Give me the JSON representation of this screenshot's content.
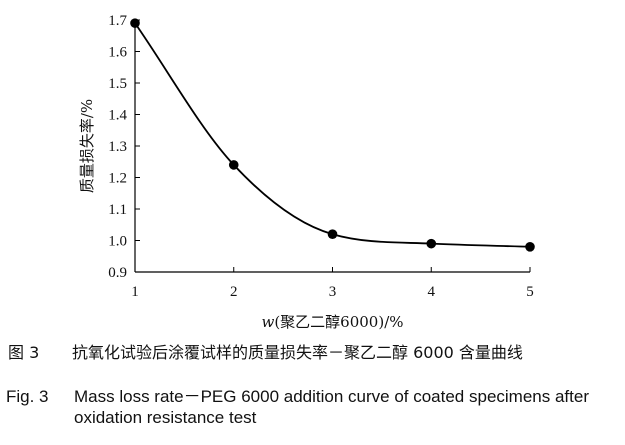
{
  "chart_data": {
    "type": "line",
    "x": [
      1,
      2,
      3,
      4,
      5
    ],
    "values": [
      1.69,
      1.24,
      1.02,
      0.99,
      0.98
    ],
    "series": [
      {
        "name": "",
        "x": [
          1,
          2,
          3,
          4,
          5
        ],
        "values": [
          1.69,
          1.24,
          1.02,
          0.99,
          0.98
        ]
      }
    ],
    "xticks": [
      "1",
      "2",
      "3",
      "4",
      "5"
    ],
    "yticks": [
      "0.9",
      "1.0",
      "1.1",
      "1.2",
      "1.3",
      "1.4",
      "1.5",
      "1.6",
      "1.7"
    ],
    "xlim": [
      1,
      5
    ],
    "ylim": [
      0.9,
      1.7
    ],
    "xlabel_italic": "w",
    "xlabel_rest": "(聚乙二醇6000)/%",
    "ylabel": "质量损失率/%",
    "grid": false,
    "legend": "none",
    "line_color": "#000000",
    "marker_color": "#000000"
  },
  "caption_cn": {
    "prefix": "图 3",
    "text": "抗氧化试验后涂覆试样的质量损失率－聚乙二醇 6000 含量曲线"
  },
  "caption_en": {
    "prefix": "Fig. 3",
    "text": "Mass loss rate－PEG 6000 addition curve of coated specimens after oxidation resistance test"
  }
}
